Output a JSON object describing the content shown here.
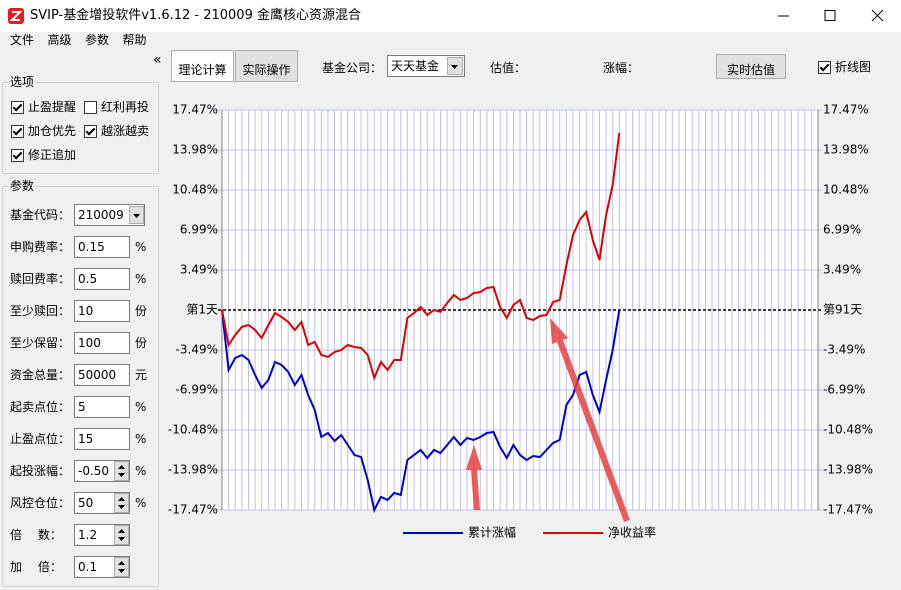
{
  "window": {
    "title": "SVIP-基金增投软件v1.6.12 - 210009 金鹰核心资源混合"
  },
  "menu": [
    "文件",
    "高级",
    "参数",
    "帮助"
  ],
  "collapse": "«",
  "options": {
    "title": "选项",
    "items": [
      {
        "label": "止盈提醒",
        "checked": true
      },
      {
        "label": "红利再投",
        "checked": false
      },
      {
        "label": "加仓优先",
        "checked": true
      },
      {
        "label": "越涨越卖",
        "checked": true
      },
      {
        "label": "修正追加",
        "checked": true
      }
    ]
  },
  "params": {
    "title": "参数",
    "rows": [
      {
        "label": "基金代码：",
        "value": "210009",
        "control": "combo"
      },
      {
        "label": "申购费率：",
        "value": "0.15",
        "unit": "%"
      },
      {
        "label": "赎回费率：",
        "value": "0.5",
        "unit": "%"
      },
      {
        "label": "至少赎回：",
        "value": "10",
        "unit": "份"
      },
      {
        "label": "至少保留：",
        "value": "100",
        "unit": "份"
      },
      {
        "label": "资金总量：",
        "value": "50000",
        "unit": "元"
      },
      {
        "label": "起卖点位：",
        "value": "5",
        "unit": "%"
      },
      {
        "label": "止盈点位：",
        "value": "15",
        "unit": "%"
      },
      {
        "label": "起投涨幅：",
        "value": "-0.50",
        "unit": "%",
        "control": "spin"
      },
      {
        "label": "风控仓位：",
        "value": "50",
        "unit": "%",
        "control": "spin"
      },
      {
        "label": "倍　 数：",
        "value": "1.2",
        "control": "spin"
      },
      {
        "label": "加　 倍：",
        "value": "0.1",
        "control": "spin"
      }
    ]
  },
  "toolbar": {
    "tabs": [
      "理论计算",
      "实际操作"
    ],
    "company_label": "基金公司：",
    "company": "天天基金",
    "estimate_label": "估值：",
    "change_label": "涨幅：",
    "refresh_button": "实时估值",
    "line_chart": {
      "label": "折线图",
      "checked": true
    }
  },
  "chart_data": {
    "type": "line",
    "x": [
      1,
      2,
      3,
      4,
      5,
      6,
      7,
      8,
      9,
      10,
      11,
      12,
      13,
      14,
      15,
      16,
      17,
      18,
      19,
      20,
      21,
      22,
      23,
      24,
      25,
      26,
      27,
      28,
      29,
      30,
      31,
      32,
      33,
      34,
      35,
      36,
      37,
      38,
      39,
      40,
      41,
      42,
      43,
      44,
      45,
      46,
      47,
      48,
      49,
      50,
      51,
      52,
      53,
      54,
      55,
      56,
      57,
      58,
      59,
      60,
      61
    ],
    "xlim": [
      1,
      91
    ],
    "xticks": [
      1,
      2,
      3,
      4,
      5,
      6,
      7,
      8,
      9,
      10,
      11,
      12,
      13,
      14,
      15,
      16,
      17,
      18,
      19,
      20,
      21,
      22,
      23,
      24,
      25,
      26,
      27,
      28,
      29,
      30,
      31,
      32,
      33,
      34,
      35,
      36,
      37,
      38,
      39,
      40,
      41,
      42,
      43,
      44,
      45,
      46,
      47,
      48,
      49,
      50,
      51,
      52,
      53,
      54,
      55,
      56,
      57,
      58,
      59,
      60,
      61,
      62,
      63,
      64,
      65,
      66,
      67,
      68,
      69,
      70,
      71,
      72,
      73,
      74,
      75,
      76,
      77,
      78,
      79,
      80,
      81,
      82,
      83,
      84,
      85,
      86,
      87,
      88,
      89,
      90,
      91
    ],
    "ylim": [
      -17.47,
      17.47
    ],
    "yticks": [
      {
        "value": 17.47,
        "label": "17.47%"
      },
      {
        "value": 13.98,
        "label": "13.98%"
      },
      {
        "value": 10.48,
        "label": "10.48%"
      },
      {
        "value": 6.99,
        "label": "6.99%"
      },
      {
        "value": 3.49,
        "label": "3.49%"
      },
      {
        "value": 0,
        "label": "第1天"
      },
      {
        "value": -3.49,
        "label": "-3.49%"
      },
      {
        "value": -6.99,
        "label": "-6.99%"
      },
      {
        "value": -10.48,
        "label": "-10.48%"
      },
      {
        "value": -13.98,
        "label": "-13.98%"
      },
      {
        "value": -17.47,
        "label": "-17.47%"
      }
    ],
    "y2ticks": [
      {
        "value": 17.47,
        "label": "17.47%"
      },
      {
        "value": 13.98,
        "label": "13.98%"
      },
      {
        "value": 10.48,
        "label": "10.48%"
      },
      {
        "value": 6.99,
        "label": "6.99%"
      },
      {
        "value": 3.49,
        "label": "3.49%"
      },
      {
        "value": 0,
        "label": "第91天"
      },
      {
        "value": -3.49,
        "label": "-3.49%"
      },
      {
        "value": -6.99,
        "label": "-6.99%"
      },
      {
        "value": -10.48,
        "label": "-10.48%"
      },
      {
        "value": -13.98,
        "label": "-13.98%"
      },
      {
        "value": -17.47,
        "label": "-17.47%"
      }
    ],
    "grid": true,
    "series": [
      {
        "name": "累计涨幅",
        "color": "#0000cc",
        "values": [
          0,
          -5.24,
          -4.19,
          -3.93,
          -4.37,
          -5.68,
          -6.81,
          -6.11,
          -4.54,
          -4.8,
          -5.41,
          -6.55,
          -5.68,
          -7.42,
          -8.73,
          -11.09,
          -10.74,
          -11.44,
          -10.92,
          -11.79,
          -12.66,
          -12.84,
          -14.85,
          -17.47,
          -16.33,
          -16.59,
          -15.98,
          -16.16,
          -13.1,
          -12.66,
          -12.23,
          -12.93,
          -12.23,
          -12.49,
          -11.79,
          -11.09,
          -11.79,
          -11.18,
          -11.35,
          -11.09,
          -10.74,
          -10.66,
          -11.97,
          -12.93,
          -11.79,
          -12.66,
          -13.1,
          -12.75,
          -12.84,
          -12.23,
          -11.62,
          -11.35,
          -8.3,
          -7.42,
          -5.68,
          -5.41,
          -7.42,
          -8.91,
          -6.11,
          -3.49,
          0
        ]
      },
      {
        "name": "净收益率",
        "color": "#dd0000",
        "values": [
          0,
          -3.06,
          -2.18,
          -1.48,
          -1.31,
          -1.75,
          -2.45,
          -1.31,
          -0.26,
          -0.61,
          -1.05,
          -1.75,
          -1.05,
          -3.06,
          -2.79,
          -3.93,
          -4.1,
          -3.67,
          -3.49,
          -3.06,
          -3.23,
          -3.32,
          -3.93,
          -5.94,
          -4.54,
          -5.24,
          -4.37,
          -4.37,
          -0.7,
          -0.26,
          0.26,
          -0.44,
          0,
          -0.17,
          0.61,
          1.31,
          0.87,
          1.05,
          1.48,
          1.57,
          1.92,
          2.01,
          0.26,
          -0.7,
          0.44,
          0.87,
          -0.7,
          -0.87,
          -0.52,
          -0.44,
          0.7,
          0.87,
          3.93,
          6.55,
          7.86,
          8.56,
          6.11,
          4.37,
          8.3,
          10.92,
          15.46
        ]
      }
    ]
  }
}
